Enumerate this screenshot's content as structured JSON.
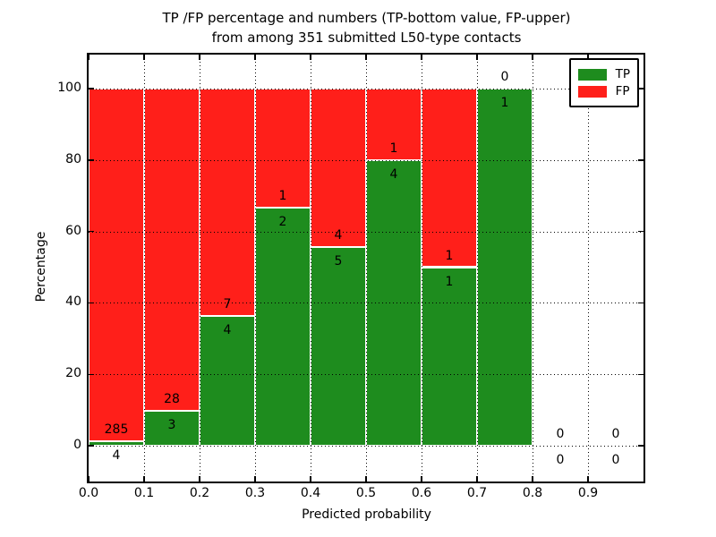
{
  "chart_data": {
    "type": "bar",
    "stacked_to_100": true,
    "title_line1": "TP /FP percentage and numbers (TP-bottom value, FP-upper)",
    "title_line2": "from among 351 submitted L50-type contacts",
    "xlabel": "Predicted probability",
    "ylabel": "Percentage",
    "bins_start": [
      0.0,
      0.1,
      0.2,
      0.3,
      0.4,
      0.5,
      0.6,
      0.7,
      0.8,
      0.9
    ],
    "bin_width": 0.1,
    "x_tick_labels": [
      "0.0",
      "0.1",
      "0.2",
      "0.3",
      "0.4",
      "0.5",
      "0.6",
      "0.7",
      "0.8",
      "0.9"
    ],
    "y_ticks": [
      0,
      20,
      40,
      60,
      80,
      100
    ],
    "y_tick_labels": [
      "0",
      "20",
      "40",
      "60",
      "80",
      "100"
    ],
    "xlim": [
      0.0,
      1.0
    ],
    "ylim": [
      -10,
      109.5
    ],
    "grid": true,
    "legend_position": "upper right",
    "series": [
      {
        "name": "TP",
        "color": "#1e8c1e",
        "counts": [
          4,
          3,
          4,
          2,
          5,
          4,
          1,
          1,
          0,
          0
        ]
      },
      {
        "name": "FP",
        "color": "#ff1f1a",
        "counts": [
          285,
          28,
          7,
          1,
          4,
          1,
          1,
          0,
          0,
          0
        ]
      }
    ],
    "tp_percent_by_bin": [
      1.4,
      9.7,
      36.4,
      66.7,
      55.6,
      80.0,
      50.0,
      100.0,
      0.0,
      0.0
    ]
  }
}
